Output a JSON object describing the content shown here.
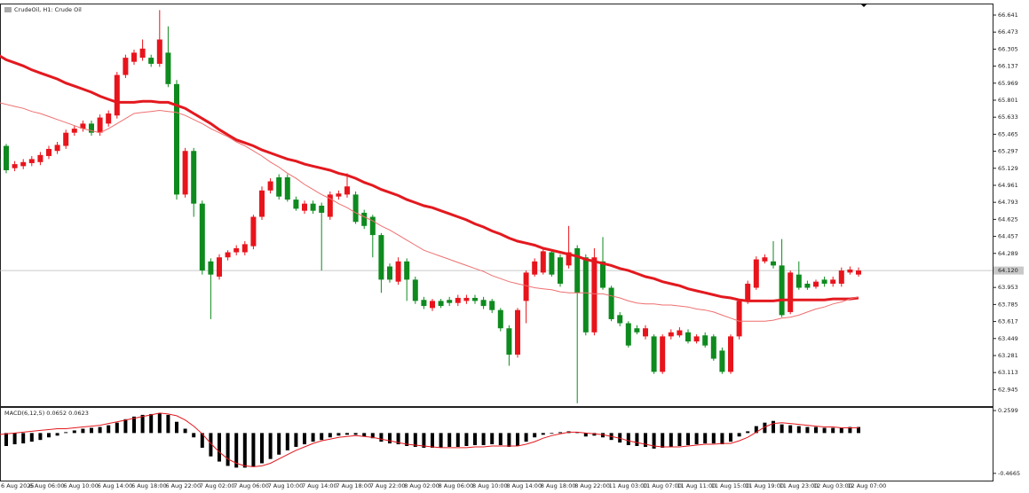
{
  "chart_data": [
    {
      "type": "candlestick",
      "title": "CrudeOil, H1: Crude Oil",
      "categories": [
        "6 Aug 2025",
        null,
        null,
        null,
        "6 Aug 06:00",
        null,
        null,
        null,
        "6 Aug 10:00",
        null,
        null,
        null,
        "6 Aug 14:00",
        null,
        null,
        null,
        "6 Aug 18:00",
        null,
        null,
        null,
        "6 Aug 22:00",
        null,
        null,
        null,
        "7 Aug 02:00",
        null,
        null,
        null,
        "7 Aug 06:00",
        null,
        null,
        null,
        "7 Aug 10:00",
        null,
        null,
        null,
        "7 Aug 14:00",
        null,
        null,
        null,
        "7 Aug 18:00",
        null,
        null,
        null,
        "7 Aug 22:00",
        null,
        null,
        null,
        "8 Aug 02:00",
        null,
        null,
        null,
        "8 Aug 06:00",
        null,
        null,
        null,
        "8 Aug 10:00",
        null,
        null,
        null,
        "8 Aug 14:00",
        null,
        null,
        null,
        "8 Aug 18:00",
        null,
        null,
        null,
        "8 Aug 22:00",
        null,
        null,
        null,
        "11 Aug 03:00",
        null,
        null,
        null,
        "11 Aug 07:00",
        null,
        null,
        null,
        "11 Aug 11:00",
        null,
        null,
        null,
        "11 Aug 15:00",
        null,
        null,
        null,
        "11 Aug 19:00",
        null,
        null,
        null,
        "11 Aug 23:00",
        null,
        null,
        null,
        "12 Aug 03:00",
        null,
        null,
        null,
        "12 Aug 07:00",
        null
      ],
      "open": [
        65.22,
        65.35,
        65.13,
        65.15,
        65.18,
        65.19,
        65.25,
        65.3,
        65.35,
        65.48,
        65.52,
        65.57,
        65.48,
        65.57,
        65.65,
        66.05,
        66.18,
        66.22,
        66.22,
        66.16,
        66.27,
        65.96,
        64.87,
        65.3,
        64.78,
        64.21,
        64.06,
        64.25,
        64.3,
        64.3,
        64.36,
        64.65,
        64.91,
        65.04,
        65.04,
        64.82,
        64.71,
        64.78,
        64.76,
        64.65,
        64.85,
        64.87,
        64.87,
        64.69,
        64.65,
        64.47,
        64.16,
        64.01,
        64.21,
        64.03,
        63.83,
        63.75,
        63.82,
        63.83,
        63.8,
        63.82,
        63.85,
        63.83,
        63.82,
        63.73,
        63.55,
        63.29,
        63.82,
        64.08,
        64.1,
        64.3,
        64.25,
        64.17,
        64.34,
        64.25,
        63.51,
        64.21,
        63.95,
        63.68,
        63.6,
        63.55,
        63.47,
        63.47,
        63.12,
        63.47,
        63.48,
        63.51,
        63.42,
        63.48,
        63.47,
        63.33,
        63.12,
        63.47,
        63.82,
        63.95,
        64.21,
        64.21,
        64.17,
        63.71,
        64.08,
        63.99,
        63.96,
        64.03,
        63.99,
        63.99,
        64.1,
        64.08
      ],
      "high": [
        65.25,
        65.37,
        65.2,
        65.22,
        65.25,
        65.29,
        65.35,
        65.39,
        65.51,
        65.55,
        65.6,
        65.6,
        65.66,
        65.7,
        66.08,
        66.25,
        66.3,
        66.4,
        66.25,
        66.69,
        66.53,
        66.0,
        65.33,
        65.33,
        64.81,
        64.24,
        64.28,
        64.32,
        64.37,
        64.41,
        64.67,
        64.95,
        65.03,
        65.07,
        65.07,
        64.85,
        64.81,
        64.81,
        64.79,
        64.9,
        64.91,
        65.08,
        64.9,
        64.72,
        64.67,
        64.49,
        64.19,
        64.25,
        64.24,
        64.06,
        63.86,
        63.84,
        63.84,
        63.86,
        63.88,
        63.88,
        63.88,
        63.86,
        63.84,
        63.75,
        63.58,
        63.75,
        64.12,
        64.24,
        64.34,
        64.32,
        64.28,
        64.56,
        64.37,
        64.28,
        64.34,
        64.45,
        63.97,
        63.71,
        63.62,
        63.58,
        63.58,
        63.49,
        63.49,
        63.54,
        63.56,
        63.54,
        63.49,
        63.51,
        63.49,
        63.36,
        63.49,
        63.84,
        64.02,
        64.26,
        64.28,
        64.41,
        64.43,
        64.12,
        64.21,
        64.02,
        64.03,
        64.06,
        64.06,
        64.15,
        64.16,
        64.15
      ],
      "low": [
        65.09,
        65.08,
        65.1,
        65.12,
        65.15,
        65.16,
        65.22,
        65.27,
        65.32,
        65.45,
        65.49,
        65.45,
        65.45,
        65.54,
        65.62,
        66.02,
        66.15,
        66.19,
        66.13,
        66.13,
        65.93,
        64.82,
        64.84,
        64.65,
        64.08,
        63.64,
        64.03,
        64.22,
        64.27,
        64.27,
        64.33,
        64.62,
        64.88,
        64.82,
        64.8,
        64.71,
        64.68,
        64.68,
        64.12,
        64.62,
        64.82,
        64.84,
        64.58,
        64.53,
        64.25,
        63.9,
        64.0,
        63.98,
        63.82,
        63.79,
        63.74,
        63.72,
        63.75,
        63.77,
        63.77,
        63.79,
        63.79,
        63.74,
        63.7,
        63.52,
        63.18,
        63.26,
        63.6,
        64.06,
        64.08,
        64.06,
        63.96,
        64.14,
        62.81,
        63.48,
        63.48,
        63.93,
        63.62,
        63.57,
        63.36,
        63.49,
        63.44,
        63.1,
        63.1,
        63.44,
        63.46,
        63.4,
        63.4,
        63.36,
        63.23,
        63.1,
        63.1,
        63.44,
        63.79,
        63.93,
        64.19,
        64.14,
        63.66,
        63.69,
        63.93,
        63.93,
        63.94,
        63.96,
        63.96,
        63.96,
        64.08,
        64.06
      ],
      "close": [
        65.13,
        65.11,
        65.17,
        65.19,
        65.22,
        65.26,
        65.32,
        65.36,
        65.48,
        65.52,
        65.57,
        65.48,
        65.63,
        65.67,
        66.05,
        66.22,
        66.27,
        66.31,
        66.16,
        66.4,
        65.96,
        64.87,
        65.3,
        64.78,
        64.12,
        64.08,
        64.25,
        64.3,
        64.34,
        64.38,
        64.65,
        64.91,
        65.0,
        64.85,
        64.82,
        64.73,
        64.78,
        64.71,
        64.69,
        64.87,
        64.88,
        64.95,
        64.6,
        64.56,
        64.47,
        64.03,
        64.03,
        64.21,
        64.03,
        63.82,
        63.77,
        63.82,
        63.77,
        63.8,
        63.85,
        63.85,
        63.82,
        63.77,
        63.73,
        63.55,
        63.29,
        63.73,
        64.1,
        64.21,
        64.31,
        64.08,
        63.99,
        64.3,
        63.9,
        63.51,
        64.25,
        63.95,
        63.64,
        63.6,
        63.38,
        63.51,
        63.55,
        63.12,
        63.47,
        63.51,
        63.53,
        63.42,
        63.47,
        63.38,
        63.25,
        63.12,
        63.47,
        63.82,
        63.99,
        64.23,
        64.25,
        64.17,
        63.68,
        64.1,
        63.95,
        63.95,
        64.01,
        63.99,
        64.03,
        64.12,
        64.13,
        64.12
      ],
      "up_color": "#e8141c",
      "down_color": "#0e8a1e",
      "moving_averages": [
        {
          "color": "#e3191f",
          "values": [
            66.25,
            66.2,
            66.17,
            66.14,
            66.1,
            66.07,
            66.04,
            66.01,
            65.97,
            65.94,
            65.91,
            65.88,
            65.84,
            65.81,
            65.78,
            65.78,
            65.78,
            65.79,
            65.79,
            65.78,
            65.78,
            65.75,
            65.72,
            65.67,
            65.62,
            65.57,
            65.51,
            65.46,
            65.41,
            65.38,
            65.35,
            65.31,
            65.28,
            65.25,
            65.22,
            65.2,
            65.17,
            65.15,
            65.13,
            65.11,
            65.08,
            65.06,
            65.03,
            64.99,
            64.96,
            64.92,
            64.89,
            64.86,
            64.82,
            64.79,
            64.76,
            64.74,
            64.71,
            64.68,
            64.65,
            64.62,
            64.58,
            64.55,
            64.51,
            64.48,
            64.44,
            64.41,
            64.39,
            64.37,
            64.34,
            64.32,
            64.3,
            64.28,
            64.26,
            64.23,
            64.21,
            64.19,
            64.17,
            64.14,
            64.12,
            64.09,
            64.06,
            64.04,
            64.01,
            63.99,
            63.97,
            63.94,
            63.92,
            63.9,
            63.88,
            63.86,
            63.85,
            63.83,
            63.82,
            63.82,
            63.82,
            63.82,
            63.83,
            63.83,
            63.83,
            63.83,
            63.83,
            63.83,
            63.84,
            63.84,
            63.84,
            63.85
          ]
        },
        {
          "color": "#ef6f6f",
          "values": [
            65.78,
            65.76,
            65.74,
            65.72,
            65.69,
            65.67,
            65.64,
            65.61,
            65.58,
            65.55,
            65.52,
            65.5,
            65.48,
            65.52,
            65.57,
            65.62,
            65.67,
            65.68,
            65.69,
            65.7,
            65.69,
            65.68,
            65.65,
            65.61,
            65.57,
            65.52,
            65.48,
            65.44,
            65.39,
            65.35,
            65.3,
            65.25,
            65.19,
            65.14,
            65.08,
            65.03,
            64.97,
            64.92,
            64.87,
            64.83,
            64.78,
            64.74,
            64.69,
            64.65,
            64.61,
            64.56,
            64.52,
            64.47,
            64.42,
            64.37,
            64.32,
            64.29,
            64.26,
            64.23,
            64.2,
            64.17,
            64.14,
            64.11,
            64.07,
            64.04,
            64.01,
            63.99,
            63.97,
            63.95,
            63.94,
            63.93,
            63.91,
            63.9,
            63.9,
            63.9,
            63.89,
            63.89,
            63.87,
            63.85,
            63.82,
            63.8,
            63.79,
            63.79,
            63.78,
            63.78,
            63.77,
            63.76,
            63.74,
            63.73,
            63.71,
            63.68,
            63.65,
            63.62,
            63.62,
            63.62,
            63.62,
            63.63,
            63.65,
            63.66,
            63.68,
            63.71,
            63.74,
            63.76,
            63.79,
            63.81,
            63.84,
            63.86
          ]
        }
      ],
      "current_price": {
        "value": 64.12,
        "label": "64.120"
      },
      "ylim": [
        62.782,
        66.746
      ],
      "yticks": [
        66.641,
        66.473,
        66.305,
        66.137,
        65.969,
        65.801,
        65.633,
        65.465,
        65.297,
        65.129,
        64.961,
        64.793,
        64.625,
        64.457,
        64.289,
        63.953,
        63.785,
        63.617,
        63.449,
        63.281,
        63.113,
        62.945
      ]
    },
    {
      "type": "macd",
      "label": "MACD(6,12,5) 0.0652 0.0623",
      "histogram": {
        "color": "#000000",
        "values": [
          -0.15,
          -0.15,
          -0.13,
          -0.12,
          -0.1,
          -0.08,
          -0.05,
          -0.03,
          0.01,
          0.03,
          0.05,
          0.06,
          0.07,
          0.09,
          0.12,
          0.16,
          0.19,
          0.21,
          0.22,
          0.23,
          0.21,
          0.13,
          0.05,
          -0.05,
          -0.17,
          -0.27,
          -0.33,
          -0.38,
          -0.4,
          -0.4,
          -0.39,
          -0.35,
          -0.3,
          -0.25,
          -0.2,
          -0.16,
          -0.13,
          -0.1,
          -0.08,
          -0.05,
          -0.03,
          -0.02,
          -0.02,
          -0.04,
          -0.06,
          -0.1,
          -0.12,
          -0.13,
          -0.15,
          -0.16,
          -0.17,
          -0.17,
          -0.17,
          -0.16,
          -0.16,
          -0.15,
          -0.14,
          -0.14,
          -0.13,
          -0.14,
          -0.16,
          -0.15,
          -0.1,
          -0.05,
          -0.02,
          0.0,
          0.01,
          0.02,
          0.01,
          -0.04,
          -0.03,
          -0.05,
          -0.08,
          -0.11,
          -0.14,
          -0.15,
          -0.16,
          -0.18,
          -0.17,
          -0.16,
          -0.15,
          -0.14,
          -0.13,
          -0.12,
          -0.12,
          -0.13,
          -0.1,
          -0.04,
          0.02,
          0.08,
          0.12,
          0.14,
          0.1,
          0.09,
          0.08,
          0.07,
          0.07,
          0.06,
          0.06,
          0.06,
          0.07,
          0.07
        ]
      },
      "signal": {
        "color": "#e3191f",
        "values": [
          -0.02,
          -0.01,
          0.0,
          0.01,
          0.02,
          0.03,
          0.04,
          0.05,
          0.05,
          0.06,
          0.07,
          0.08,
          0.09,
          0.11,
          0.13,
          0.15,
          0.17,
          0.19,
          0.21,
          0.23,
          0.22,
          0.2,
          0.15,
          0.08,
          -0.01,
          -0.12,
          -0.22,
          -0.3,
          -0.35,
          -0.38,
          -0.39,
          -0.38,
          -0.35,
          -0.3,
          -0.25,
          -0.2,
          -0.16,
          -0.12,
          -0.09,
          -0.07,
          -0.05,
          -0.04,
          -0.03,
          -0.04,
          -0.05,
          -0.07,
          -0.09,
          -0.11,
          -0.13,
          -0.14,
          -0.15,
          -0.16,
          -0.17,
          -0.17,
          -0.17,
          -0.17,
          -0.16,
          -0.16,
          -0.15,
          -0.15,
          -0.15,
          -0.15,
          -0.13,
          -0.1,
          -0.06,
          -0.03,
          -0.01,
          0.01,
          0.01,
          0.0,
          -0.01,
          -0.02,
          -0.04,
          -0.06,
          -0.09,
          -0.11,
          -0.13,
          -0.15,
          -0.16,
          -0.16,
          -0.16,
          -0.15,
          -0.14,
          -0.13,
          -0.13,
          -0.12,
          -0.12,
          -0.09,
          -0.05,
          0.01,
          0.07,
          0.11,
          0.12,
          0.11,
          0.1,
          0.09,
          0.08,
          0.07,
          0.07,
          0.06,
          0.06,
          0.06
        ]
      },
      "ylim": [
        -0.55,
        0.291
      ],
      "yticks": [
        0.2599,
        -0.4665
      ]
    }
  ]
}
